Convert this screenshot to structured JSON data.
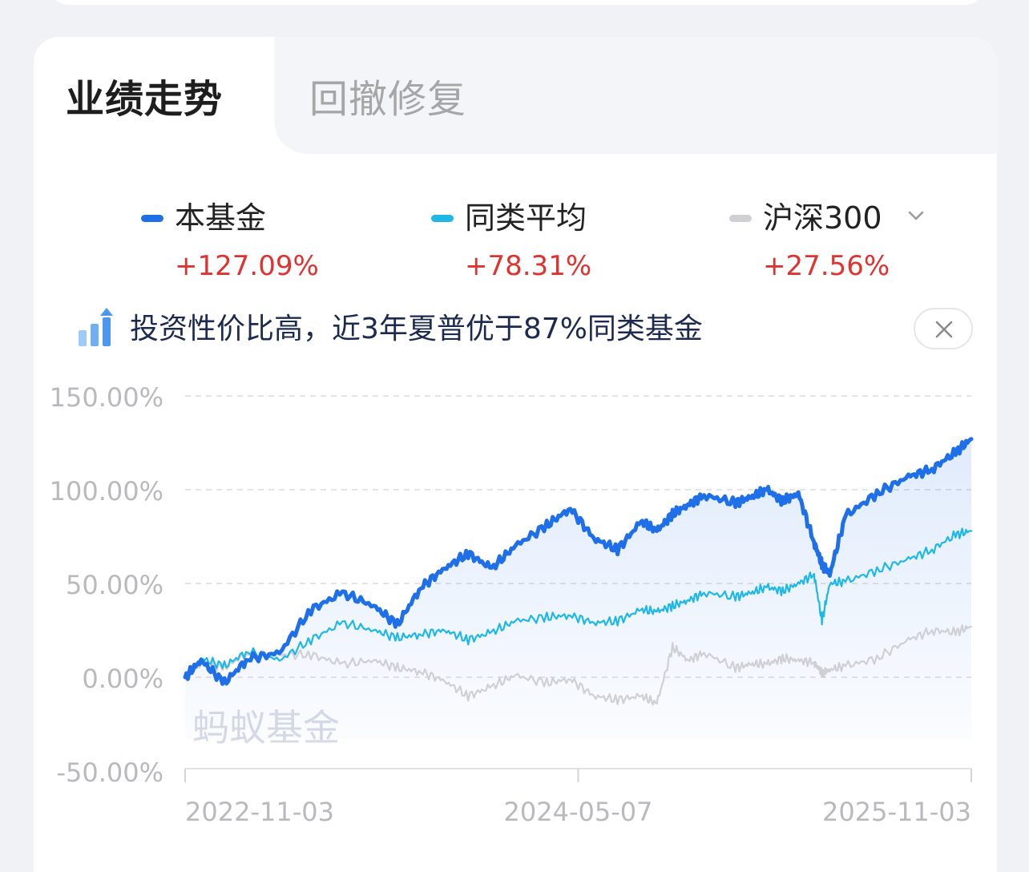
{
  "tabs": [
    {
      "label": "业绩走势",
      "active": true
    },
    {
      "label": "回撤修复",
      "active": false
    }
  ],
  "legend": [
    {
      "name": "本基金",
      "value": "+127.09%",
      "color": "#1f6fe8"
    },
    {
      "name": "同类平均",
      "value": "+78.31%",
      "color": "#1fb8e6"
    },
    {
      "name": "沪深300",
      "value": "+27.56%",
      "color": "#cfcfd4",
      "dropdown_icon": "chevron-down-icon"
    }
  ],
  "notice": {
    "icon": "bar-chart-up-icon",
    "text": "投资性价比高，近3年夏普优于87%同类基金",
    "close_icon": "close-icon"
  },
  "watermark": "蚂蚁基金",
  "colors": {
    "up": "#e0322f",
    "fund": "#1f6fe8",
    "peer": "#1fb8e6",
    "index": "#cfcfd4"
  },
  "chart_data": {
    "type": "line",
    "xlabel": "",
    "ylabel": "",
    "ylim": [
      -50,
      150
    ],
    "y_ticks": [
      "150.00%",
      "100.00%",
      "50.00%",
      "0.00%",
      "-50.00%"
    ],
    "y_tick_values": [
      150,
      100,
      50,
      0,
      -50
    ],
    "x_ticks": [
      "2022-11-03",
      "2024-05-07",
      "2025-11-03"
    ],
    "grid": true,
    "x": [
      0,
      0.02,
      0.05,
      0.08,
      0.12,
      0.16,
      0.2,
      0.24,
      0.27,
      0.3,
      0.33,
      0.36,
      0.39,
      0.42,
      0.46,
      0.49,
      0.52,
      0.55,
      0.58,
      0.6,
      0.62,
      0.64,
      0.66,
      0.7,
      0.72,
      0.74,
      0.76,
      0.78,
      0.8,
      0.81,
      0.82,
      0.84,
      0.88,
      0.92,
      0.95,
      0.98,
      1.0
    ],
    "series": [
      {
        "name": "本基金",
        "values": [
          0,
          9,
          -3,
          10,
          13,
          36,
          45,
          38,
          28,
          48,
          58,
          66,
          58,
          70,
          81,
          90,
          74,
          68,
          83,
          78,
          87,
          92,
          97,
          93,
          96,
          100,
          94,
          98,
          72,
          60,
          55,
          86,
          98,
          107,
          111,
          120,
          127
        ]
      },
      {
        "name": "同类平均",
        "values": [
          0,
          10,
          6,
          14,
          9,
          20,
          29,
          25,
          21,
          23,
          25,
          20,
          24,
          30,
          32,
          33,
          29,
          30,
          36,
          35,
          38,
          41,
          45,
          43,
          45,
          48,
          46,
          50,
          55,
          30,
          50,
          51,
          57,
          63,
          68,
          76,
          78
        ]
      },
      {
        "name": "沪深300",
        "values": [
          0,
          7,
          5,
          13,
          12,
          12,
          7,
          9,
          5,
          3,
          -2,
          -10,
          -5,
          1,
          -3,
          -1,
          -10,
          -12,
          -10,
          -14,
          16,
          9,
          13,
          5,
          7,
          7,
          10,
          9,
          8,
          2,
          4,
          6,
          10,
          20,
          25,
          24,
          27
        ]
      }
    ]
  }
}
